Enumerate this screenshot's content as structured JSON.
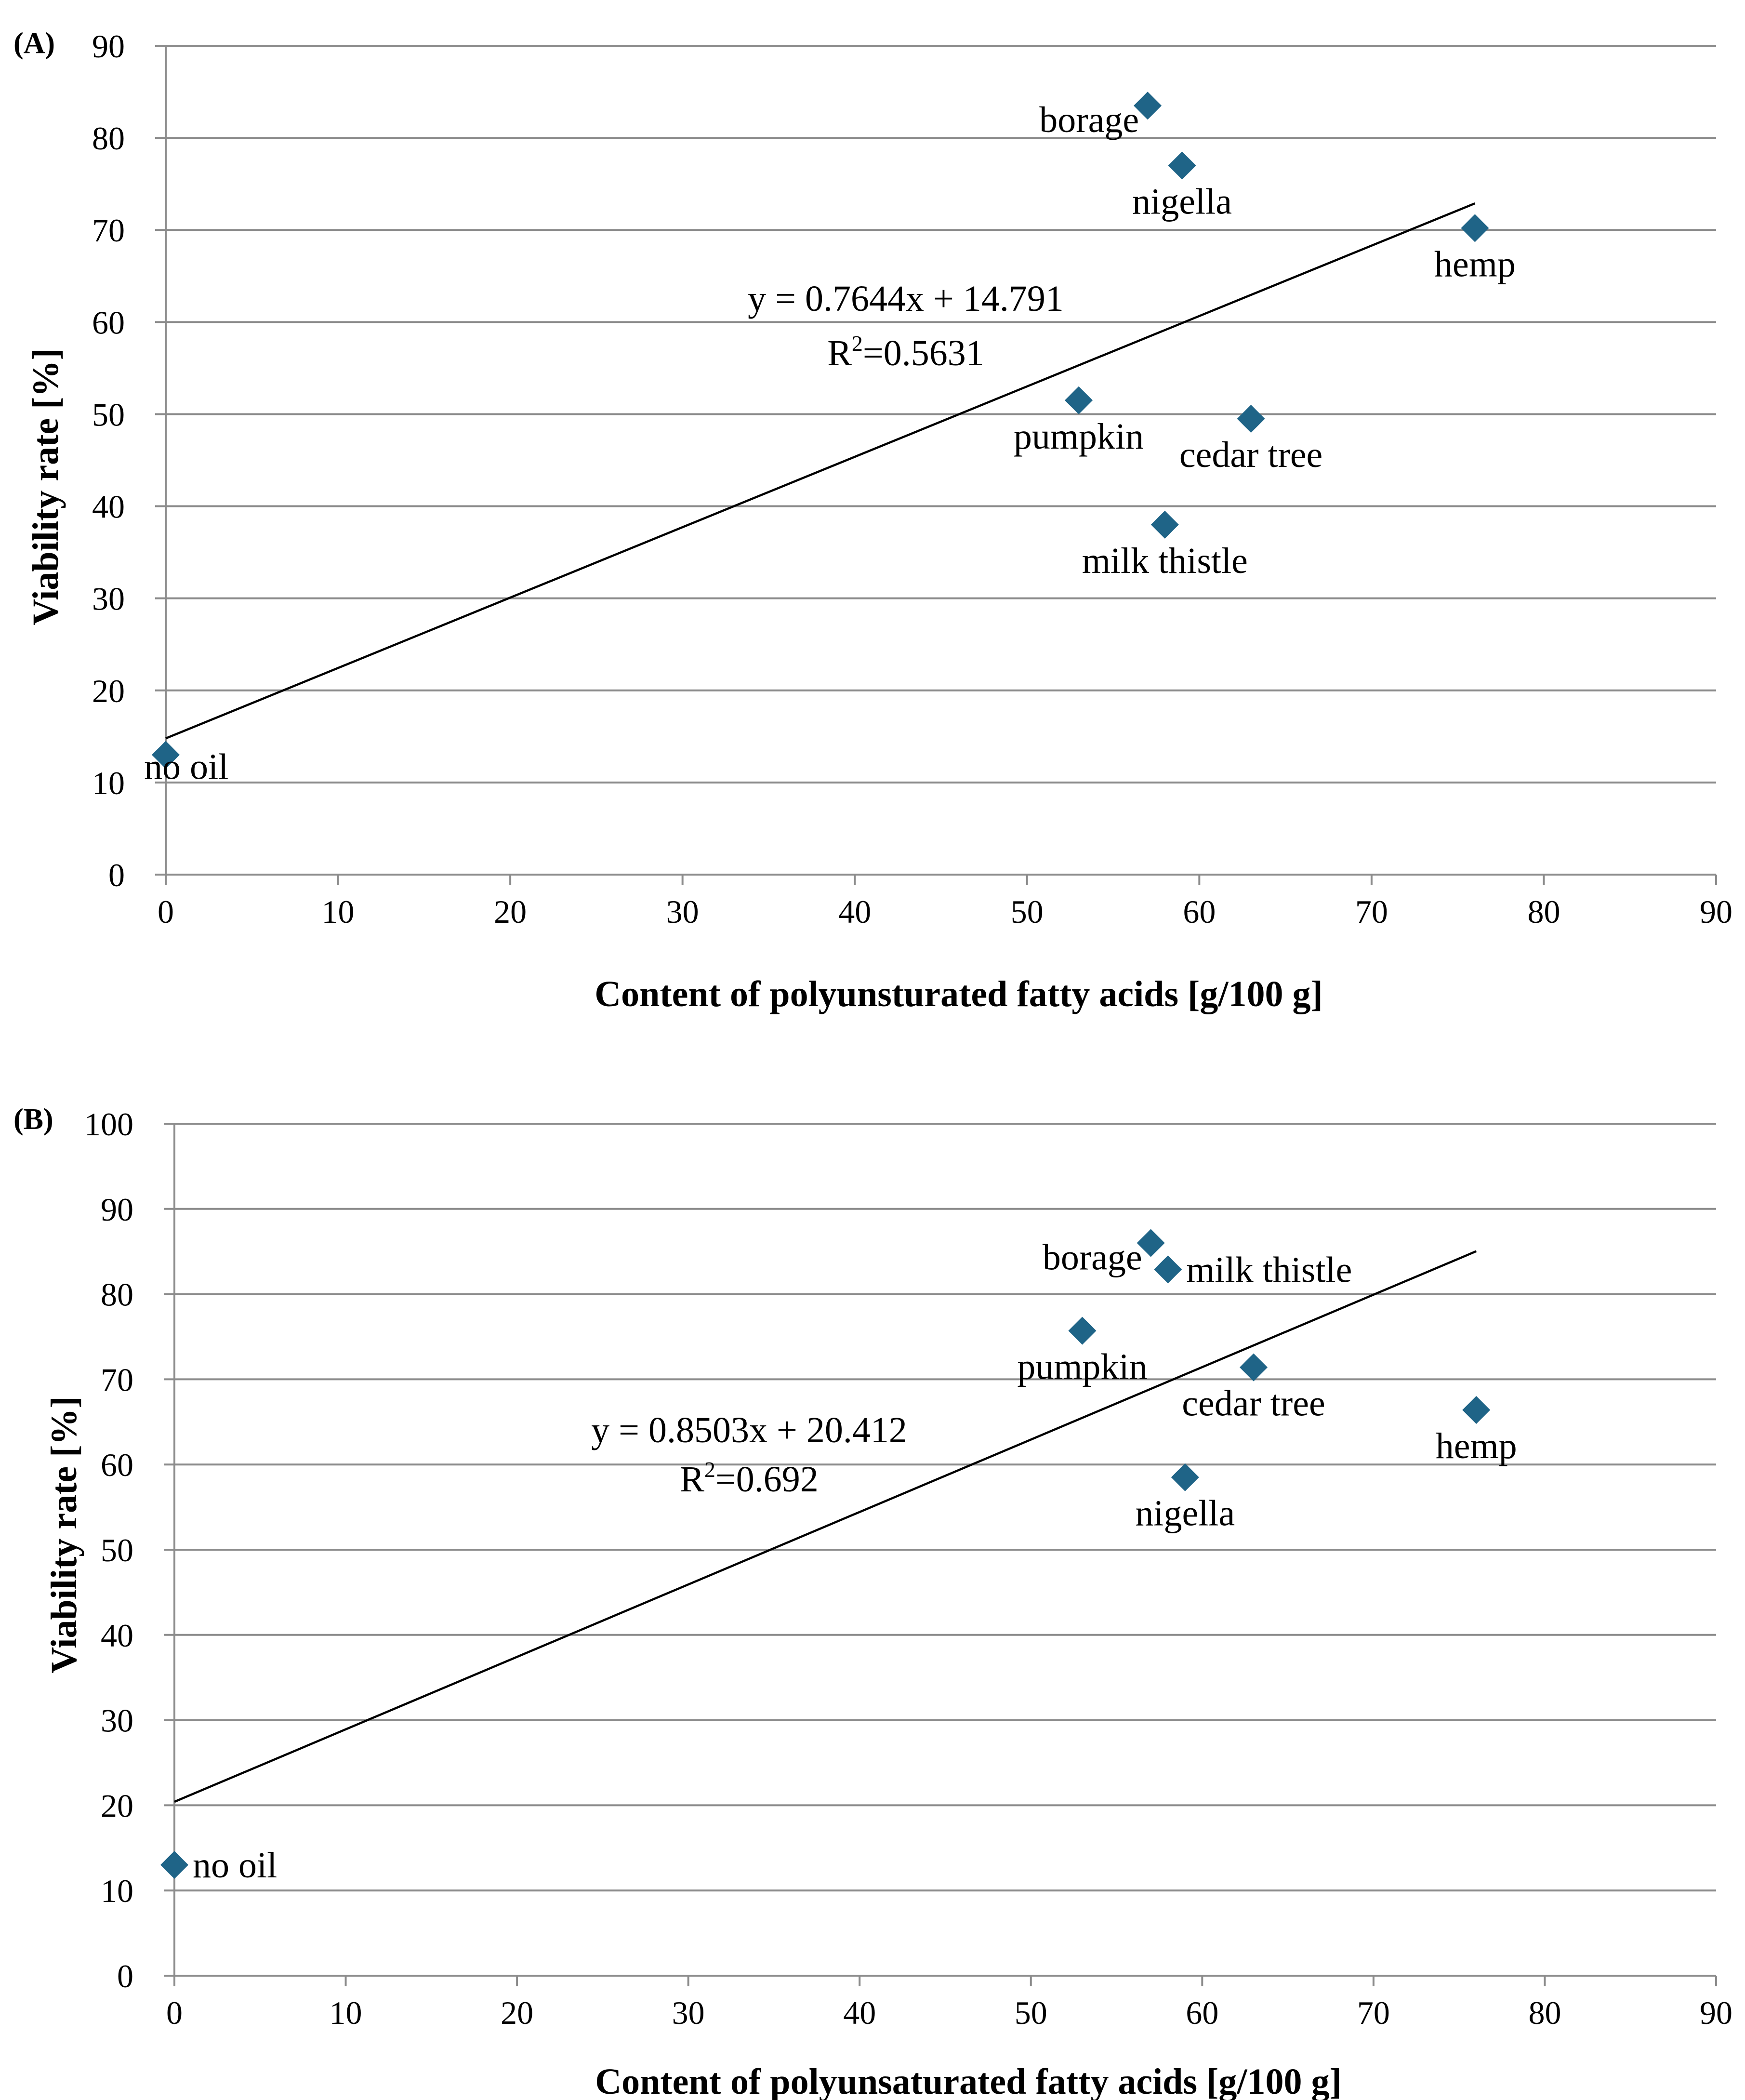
{
  "chart_data": [
    {
      "panel": "(A)",
      "type": "scatter",
      "xlabel": "Content of polyunsturated fatty acids [g/100 g]",
      "ylabel": "Viability rate [%]",
      "xlim": [
        0,
        90
      ],
      "ylim": [
        0,
        90
      ],
      "xticks": [
        0,
        10,
        20,
        30,
        40,
        50,
        60,
        70,
        80,
        90
      ],
      "yticks": [
        0,
        10,
        20,
        30,
        40,
        50,
        60,
        70,
        80,
        90
      ],
      "grid": "horizontal",
      "marker_color": "#1F6487",
      "points": [
        {
          "label": "no oil",
          "x": 0,
          "y": 13,
          "label_pos": "right-below"
        },
        {
          "label": "pumpkin",
          "x": 53,
          "y": 51.5,
          "label_pos": "below"
        },
        {
          "label": "borage",
          "x": 57,
          "y": 83.5,
          "label_pos": "left"
        },
        {
          "label": "milk thistle",
          "x": 58,
          "y": 38,
          "label_pos": "below"
        },
        {
          "label": "nigella",
          "x": 59,
          "y": 77,
          "label_pos": "below"
        },
        {
          "label": "cedar tree",
          "x": 63,
          "y": 49.5,
          "label_pos": "below"
        },
        {
          "label": "hemp",
          "x": 76,
          "y": 70.2,
          "label_pos": "below"
        }
      ],
      "trendline": {
        "slope": 0.7644,
        "intercept": 14.791,
        "x_range": [
          0,
          76
        ]
      },
      "equation": "y = 0.7644x + 14.791",
      "r2_text": "R",
      "r2_sup": "2",
      "r2_value": "=0.5631"
    },
    {
      "panel": "(B)",
      "type": "scatter",
      "xlabel": "Content of polyunsaturated fatty acids [g/100 g]",
      "ylabel": "Viability rate [%]",
      "xlim": [
        0,
        90
      ],
      "ylim": [
        0,
        100
      ],
      "xticks": [
        0,
        10,
        20,
        30,
        40,
        50,
        60,
        70,
        80,
        90
      ],
      "yticks": [
        0,
        10,
        20,
        30,
        40,
        50,
        60,
        70,
        80,
        90,
        100
      ],
      "grid": "horizontal",
      "marker_color": "#1F6487",
      "points": [
        {
          "label": "no oil",
          "x": 0,
          "y": 13,
          "label_pos": "right"
        },
        {
          "label": "pumpkin",
          "x": 53,
          "y": 75.7,
          "label_pos": "below"
        },
        {
          "label": "borage",
          "x": 57,
          "y": 86,
          "label_pos": "left"
        },
        {
          "label": "milk thistle",
          "x": 58,
          "y": 82.9,
          "label_pos": "right"
        },
        {
          "label": "nigella",
          "x": 59,
          "y": 58.5,
          "label_pos": "below"
        },
        {
          "label": "cedar tree",
          "x": 63,
          "y": 71.4,
          "label_pos": "below"
        },
        {
          "label": "hemp",
          "x": 76,
          "y": 66.4,
          "label_pos": "below"
        }
      ],
      "trendline": {
        "slope": 0.8503,
        "intercept": 20.412,
        "x_range": [
          0,
          76
        ]
      },
      "equation": "y = 0.8503x + 20.412",
      "r2_text": "R",
      "r2_sup": "2",
      "r2_value": "=0.692"
    }
  ]
}
